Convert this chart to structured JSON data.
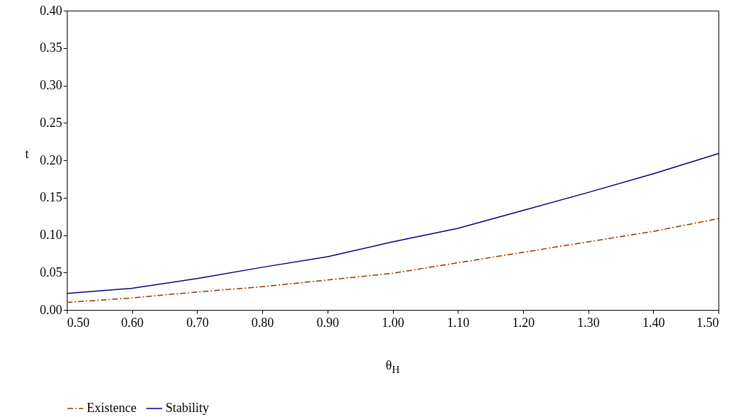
{
  "chart_data": {
    "type": "line",
    "xlabel": "θ$_{H}$",
    "ylabel": "t",
    "x": [
      0.5,
      0.6,
      0.7,
      0.8,
      0.9,
      1.0,
      1.1,
      1.2,
      1.3,
      1.4,
      1.5
    ],
    "series": [
      {
        "name": "Existence",
        "color": "#993300",
        "line_style": "dashed",
        "values": [
          0.01,
          0.016,
          0.024,
          0.031,
          0.04,
          0.049,
          0.063,
          0.077,
          0.091,
          0.105,
          0.122
        ]
      },
      {
        "name": "Stability",
        "color": "#000080",
        "line_style": "solid",
        "values": [
          0.022,
          0.029,
          0.042,
          0.057,
          0.071,
          0.091,
          0.109,
          0.133,
          0.157,
          0.182,
          0.209
        ]
      }
    ],
    "xlim": [
      0.5,
      1.5
    ],
    "xticks": [
      {
        "value": 0.5,
        "label": "0.50"
      },
      {
        "value": 0.6,
        "label": "0.60"
      },
      {
        "value": 0.7,
        "label": "0.70"
      },
      {
        "value": 0.8,
        "label": "0.80"
      },
      {
        "value": 0.9,
        "label": "0.90"
      },
      {
        "value": 1.0,
        "label": "1.00"
      },
      {
        "value": 1.1,
        "label": "1.10"
      },
      {
        "value": 1.2,
        "label": "1.20"
      },
      {
        "value": 1.3,
        "label": "1.30"
      },
      {
        "value": 1.4,
        "label": "1.40"
      },
      {
        "value": 1.5,
        "label": "1.50"
      }
    ],
    "ylim": [
      0,
      0.4
    ],
    "yticks": [
      {
        "value": 0,
        "label": "0.00"
      },
      {
        "value": 0.05,
        "label": "0.05"
      },
      {
        "value": 0.1,
        "label": "0.10"
      },
      {
        "value": 0.15,
        "label": "0.15"
      },
      {
        "value": 0.2,
        "label": "0.20"
      },
      {
        "value": 0.25,
        "label": "0.25"
      },
      {
        "value": 0.3,
        "label": "0.30"
      },
      {
        "value": 0.35,
        "label": "0.35"
      },
      {
        "value": 0.4,
        "label": "0.40"
      }
    ],
    "grid": false,
    "legend": "bottom",
    "marker": "none"
  }
}
